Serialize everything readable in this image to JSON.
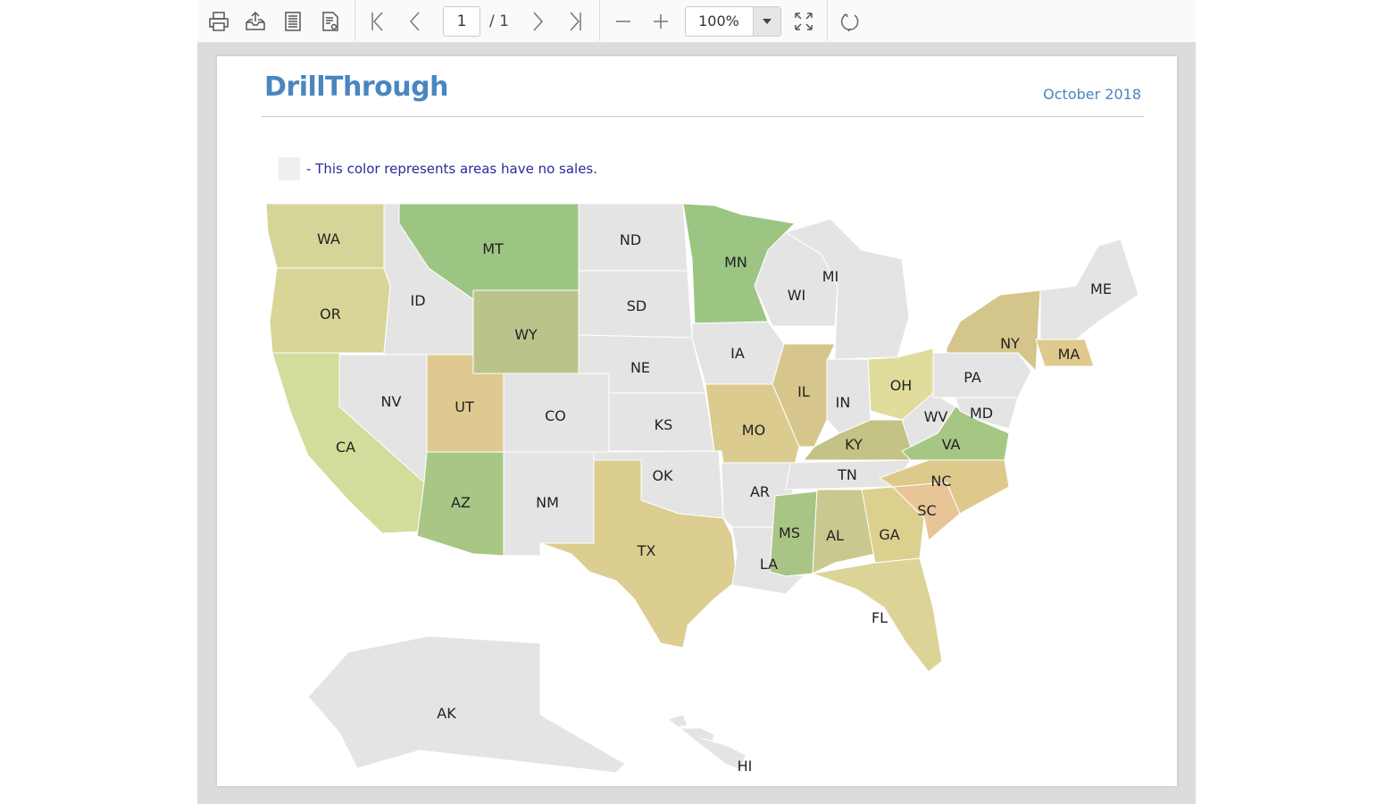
{
  "toolbar": {
    "icons": [
      "print-icon",
      "export-icon",
      "page-layout-icon",
      "page-setup-icon",
      "first-page-icon",
      "previous-page-icon",
      "next-page-icon",
      "last-page-icon",
      "zoom-out-icon",
      "zoom-in-icon",
      "fit-page-icon",
      "refresh-icon"
    ],
    "current_page": "1",
    "page_total": "/ 1",
    "zoom": "100%"
  },
  "report": {
    "title": "DrillThrough",
    "date": "October 2018",
    "legend_text": "- This color represents areas have no sales.",
    "no_sales_color": "#f1eeee"
  },
  "map": {
    "states": [
      {
        "code": "WA",
        "color": "#d6d598"
      },
      {
        "code": "OR",
        "color": "#d8d596"
      },
      {
        "code": "CA",
        "color": "#d3dc9b"
      },
      {
        "code": "NV",
        "color": "#e4e4e4"
      },
      {
        "code": "ID",
        "color": "#e4e4e4"
      },
      {
        "code": "MT",
        "color": "#9cc584"
      },
      {
        "code": "WY",
        "color": "#bac48a"
      },
      {
        "code": "UT",
        "color": "#e0c990"
      },
      {
        "code": "AZ",
        "color": "#a8c785"
      },
      {
        "code": "CO",
        "color": "#e4e4e4"
      },
      {
        "code": "NM",
        "color": "#e4e4e4"
      },
      {
        "code": "ND",
        "color": "#e4e4e4"
      },
      {
        "code": "SD",
        "color": "#e4e4e4"
      },
      {
        "code": "NE",
        "color": "#e4e4e4"
      },
      {
        "code": "KS",
        "color": "#e4e4e4"
      },
      {
        "code": "OK",
        "color": "#e4e4e4"
      },
      {
        "code": "TX",
        "color": "#dccd90"
      },
      {
        "code": "MN",
        "color": "#9cc584"
      },
      {
        "code": "IA",
        "color": "#e4e4e4"
      },
      {
        "code": "MO",
        "color": "#dccb8f"
      },
      {
        "code": "AR",
        "color": "#e4e4e4"
      },
      {
        "code": "LA",
        "color": "#e4e4e4"
      },
      {
        "code": "WI",
        "color": "#e4e4e4"
      },
      {
        "code": "MI",
        "color": "#e4e4e4"
      },
      {
        "code": "IL",
        "color": "#d7c68c"
      },
      {
        "code": "IN",
        "color": "#e4e4e4"
      },
      {
        "code": "OH",
        "color": "#dfdc9c"
      },
      {
        "code": "KY",
        "color": "#c2c385"
      },
      {
        "code": "TN",
        "color": "#e4e4e4"
      },
      {
        "code": "MS",
        "color": "#a9c585"
      },
      {
        "code": "AL",
        "color": "#c9c98f"
      },
      {
        "code": "GA",
        "color": "#ddd08f"
      },
      {
        "code": "FL",
        "color": "#dcd496"
      },
      {
        "code": "SC",
        "color": "#e8c496"
      },
      {
        "code": "NC",
        "color": "#dec98d"
      },
      {
        "code": "VA",
        "color": "#a6c784"
      },
      {
        "code": "WV",
        "color": "#e4e4e4"
      },
      {
        "code": "PA",
        "color": "#e4e4e4"
      },
      {
        "code": "NY",
        "color": "#d4c68a"
      },
      {
        "code": "MD",
        "color": "#e4e4e4"
      },
      {
        "code": "MA",
        "color": "#e0c98c"
      },
      {
        "code": "ME",
        "color": "#e4e4e4"
      },
      {
        "code": "AK",
        "color": "#e4e4e4"
      },
      {
        "code": "HI",
        "color": "#e4e4e4"
      }
    ]
  }
}
